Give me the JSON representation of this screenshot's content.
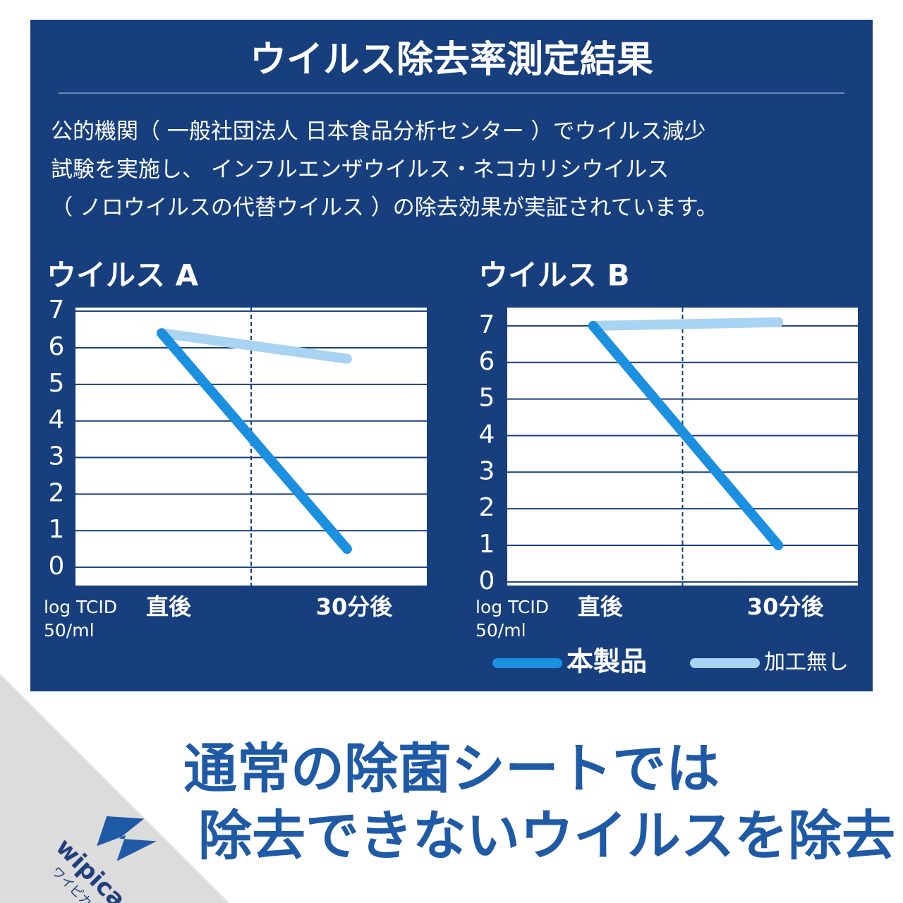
{
  "header": {
    "title": "ウイルス除去率測定結果",
    "description": [
      "公的機関（ 一般社団法人 日本食品分析センター ）でウイルス減少",
      "試験を実施し、 インフルエンザウイルス・ネコカリシウイルス",
      "（ ノロウイルスの代替ウイルス ）の除去効果が実証されています。"
    ]
  },
  "chart_data": [
    {
      "type": "line",
      "title": "ウイルス A",
      "categories": [
        "直後",
        "30分後"
      ],
      "y_label": [
        "log TCID",
        "50/ml"
      ],
      "ylim": [
        -0.5,
        7.1
      ],
      "yticks": [
        0,
        1,
        2,
        3,
        4,
        5,
        6,
        7
      ],
      "grid": true,
      "series": [
        {
          "color": "#1b8fe0",
          "values": [
            6.4,
            0.5
          ]
        },
        {
          "color": "#a9d3f3",
          "values": [
            6.4,
            5.7
          ]
        }
      ]
    },
    {
      "type": "line",
      "title": "ウイルス B",
      "categories": [
        "直後",
        "30分後"
      ],
      "y_label": [
        "log TCID",
        "50/ml"
      ],
      "ylim": [
        -0.1,
        7.5
      ],
      "yticks": [
        0,
        1,
        2,
        3,
        4,
        5,
        6,
        7
      ],
      "grid": true,
      "series": [
        {
          "name": "本製品",
          "color": "#1b8fe0",
          "values": [
            7.0,
            1.0
          ]
        },
        {
          "name": "加工無し",
          "color": "#a9d3f3",
          "values": [
            7.0,
            7.1
          ]
        }
      ]
    }
  ],
  "headline": [
    "通常の除菌シートでは",
    "除去できないウイルスを除去"
  ],
  "logo": {
    "name": "wipica",
    "kana": "ワイピカ"
  }
}
